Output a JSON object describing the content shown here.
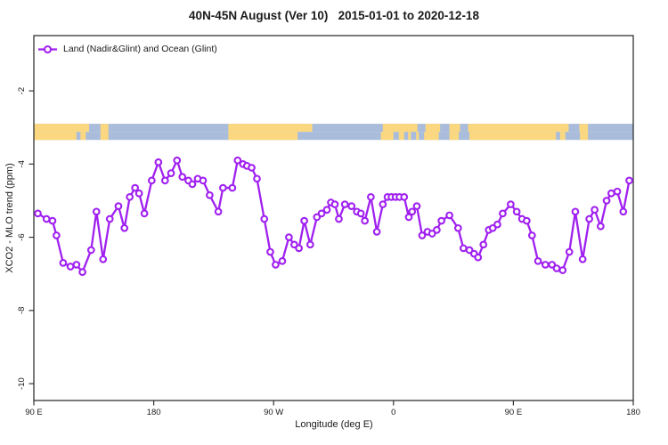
{
  "window": {
    "background": "#ffffff"
  },
  "chart_data": {
    "type": "line",
    "title": "40N-45N August (Ver 10)   2015-01-01 to 2020-12-18",
    "xlabel": "Longitude (deg E)",
    "ylabel": "XCO2 - MLO trend (ppm)",
    "legend": [
      {
        "label": "Land (Nadir&Glint) and Ocean (Glint)",
        "color": "#A020F0",
        "marker": "open-circle-on-line"
      }
    ],
    "legend_position": "top-left-inside",
    "grid": "off",
    "series_color": "#A020F0",
    "axis_color": "#333333",
    "xlim": [
      90,
      540
    ],
    "ylim": [
      -10.46,
      -0.49
    ],
    "x_ticks": [
      {
        "lon": 90,
        "label": "90 E"
      },
      {
        "lon": 180,
        "label": "180"
      },
      {
        "lon": 270,
        "label": "90 W"
      },
      {
        "lon": 360,
        "label": "0"
      },
      {
        "lon": 450,
        "label": "90 E"
      },
      {
        "lon": 540,
        "label": "180"
      }
    ],
    "y_ticks": [
      {
        "value": -2,
        "label": "-2"
      },
      {
        "value": -4,
        "label": "-4"
      },
      {
        "value": -6,
        "label": "-6"
      },
      {
        "value": -8,
        "label": "-8"
      },
      {
        "value": -10,
        "label": "-10"
      }
    ],
    "points": [
      [
        93,
        -5.35
      ],
      [
        99.5,
        -5.5
      ],
      [
        104,
        -5.55
      ],
      [
        107,
        -5.95
      ],
      [
        112,
        -6.7
      ],
      [
        117.5,
        -6.8
      ],
      [
        122,
        -6.75
      ],
      [
        126.5,
        -6.95
      ],
      [
        133,
        -6.35
      ],
      [
        137,
        -5.3
      ],
      [
        142,
        -6.6
      ],
      [
        147,
        -5.5
      ],
      [
        153.5,
        -5.15
      ],
      [
        158,
        -5.75
      ],
      [
        162,
        -4.9
      ],
      [
        166,
        -4.65
      ],
      [
        169,
        -4.8
      ],
      [
        173,
        -5.35
      ],
      [
        178.5,
        -4.45
      ],
      [
        183.5,
        -3.95
      ],
      [
        188.5,
        -4.45
      ],
      [
        193,
        -4.25
      ],
      [
        197.5,
        -3.9
      ],
      [
        201.5,
        -4.35
      ],
      [
        206,
        -4.45
      ],
      [
        209,
        -4.55
      ],
      [
        213,
        -4.4
      ],
      [
        217,
        -4.45
      ],
      [
        222,
        -4.85
      ],
      [
        228.5,
        -5.3
      ],
      [
        232,
        -4.65
      ],
      [
        239,
        -4.65
      ],
      [
        243,
        -3.9
      ],
      [
        247,
        -4.0
      ],
      [
        250,
        -4.05
      ],
      [
        253.5,
        -4.1
      ],
      [
        257.5,
        -4.4
      ],
      [
        263,
        -5.5
      ],
      [
        267.5,
        -6.4
      ],
      [
        271.5,
        -6.75
      ],
      [
        276.5,
        -6.65
      ],
      [
        281.5,
        -6.0
      ],
      [
        285.5,
        -6.2
      ],
      [
        289,
        -6.3
      ],
      [
        293,
        -5.55
      ],
      [
        297.5,
        -6.2
      ],
      [
        302.5,
        -5.45
      ],
      [
        306,
        -5.35
      ],
      [
        310,
        -5.25
      ],
      [
        313,
        -5.05
      ],
      [
        316,
        -5.1
      ],
      [
        319,
        -5.5
      ],
      [
        323.5,
        -5.1
      ],
      [
        328.5,
        -5.15
      ],
      [
        332.5,
        -5.3
      ],
      [
        335.5,
        -5.35
      ],
      [
        338.5,
        -5.55
      ],
      [
        343,
        -4.9
      ],
      [
        347.5,
        -5.85
      ],
      [
        352,
        -5.1
      ],
      [
        355.5,
        -4.9
      ],
      [
        358.5,
        -4.9
      ],
      [
        361.5,
        -4.9
      ],
      [
        364.5,
        -4.9
      ],
      [
        368,
        -4.9
      ],
      [
        371.5,
        -5.45
      ],
      [
        374,
        -5.3
      ],
      [
        377.5,
        -5.15
      ],
      [
        381.5,
        -5.95
      ],
      [
        385.5,
        -5.85
      ],
      [
        389,
        -5.9
      ],
      [
        392.5,
        -5.8
      ],
      [
        396,
        -5.55
      ],
      [
        402,
        -5.4
      ],
      [
        408.5,
        -5.75
      ],
      [
        412.5,
        -6.3
      ],
      [
        417,
        -6.35
      ],
      [
        420.5,
        -6.45
      ],
      [
        423.5,
        -6.55
      ],
      [
        427.5,
        -6.2
      ],
      [
        431.5,
        -5.8
      ],
      [
        434.5,
        -5.75
      ],
      [
        438,
        -5.65
      ],
      [
        442,
        -5.35
      ],
      [
        448,
        -5.1
      ],
      [
        452.5,
        -5.3
      ],
      [
        456.5,
        -5.5
      ],
      [
        460,
        -5.55
      ],
      [
        464,
        -5.95
      ],
      [
        468.5,
        -6.65
      ],
      [
        474,
        -6.75
      ],
      [
        479,
        -6.75
      ],
      [
        482.5,
        -6.85
      ],
      [
        487,
        -6.9
      ],
      [
        492,
        -6.4
      ],
      [
        496.5,
        -5.3
      ],
      [
        502,
        -6.6
      ],
      [
        507,
        -5.5
      ],
      [
        511,
        -5.25
      ],
      [
        515.5,
        -5.7
      ],
      [
        520,
        -5.0
      ],
      [
        523.5,
        -4.8
      ],
      [
        528,
        -4.75
      ],
      [
        532.5,
        -5.3
      ],
      [
        537,
        -4.45
      ]
    ],
    "map_strip": {
      "description": "land/ocean mask band for 40N-45N latitude belt",
      "land_color": "#FBD87F",
      "ocean_color": "#A9BCDB",
      "value_band": [
        -3.34,
        -2.9
      ],
      "rows": [
        {
          "name": "42.5N-45N",
          "land_segments": [
            [
              90,
              131.5
            ],
            [
              140,
              146
            ],
            [
              236,
              299
            ],
            [
              352,
              378
            ],
            [
              384,
              395
            ],
            [
              402,
              410
            ],
            [
              416,
              491.5
            ],
            [
              499.5,
              506
            ]
          ]
        },
        {
          "name": "40N-42.5N",
          "land_segments": [
            [
              90,
              122
            ],
            [
              125,
              129
            ],
            [
              140,
              146
            ],
            [
              236,
              288
            ],
            [
              350.5,
              360
            ],
            [
              364,
              368
            ],
            [
              371,
              373
            ],
            [
              377,
              379
            ],
            [
              383,
              394
            ],
            [
              402,
              409
            ],
            [
              417,
              482
            ],
            [
              485,
              489
            ],
            [
              500,
              506
            ]
          ]
        }
      ]
    }
  }
}
